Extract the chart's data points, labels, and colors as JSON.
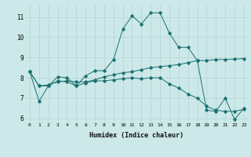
{
  "xlabel": "Humidex (Indice chaleur)",
  "bg_color": "#cce8e8",
  "grid_color": "#b8d8d8",
  "line_color": "#1a7070",
  "xlim": [
    -0.5,
    23.5
  ],
  "ylim": [
    5.8,
    11.6
  ],
  "yticks": [
    6,
    7,
    8,
    9,
    10,
    11
  ],
  "xticks": [
    0,
    1,
    2,
    3,
    4,
    5,
    6,
    7,
    8,
    9,
    10,
    11,
    12,
    13,
    14,
    15,
    16,
    17,
    18,
    19,
    20,
    21,
    22,
    23
  ],
  "series": [
    [
      8.3,
      6.85,
      7.6,
      8.05,
      8.0,
      7.6,
      8.1,
      8.35,
      8.35,
      8.9,
      10.4,
      11.05,
      10.65,
      11.2,
      11.2,
      10.2,
      9.5,
      9.5,
      8.85,
      6.4,
      6.35,
      7.0,
      5.95,
      6.5
    ],
    [
      8.3,
      7.6,
      7.65,
      7.8,
      7.85,
      7.8,
      7.8,
      7.9,
      8.05,
      8.15,
      8.25,
      8.3,
      8.4,
      8.5,
      8.55,
      8.6,
      8.65,
      8.75,
      8.85,
      8.85,
      8.9,
      8.9,
      8.92,
      8.95
    ],
    [
      8.3,
      7.6,
      7.6,
      7.85,
      7.8,
      7.6,
      7.75,
      7.85,
      7.85,
      7.9,
      7.95,
      8.0,
      7.95,
      8.0,
      8.0,
      7.7,
      7.5,
      7.2,
      7.0,
      6.6,
      6.4,
      6.35,
      6.35,
      6.45
    ]
  ]
}
